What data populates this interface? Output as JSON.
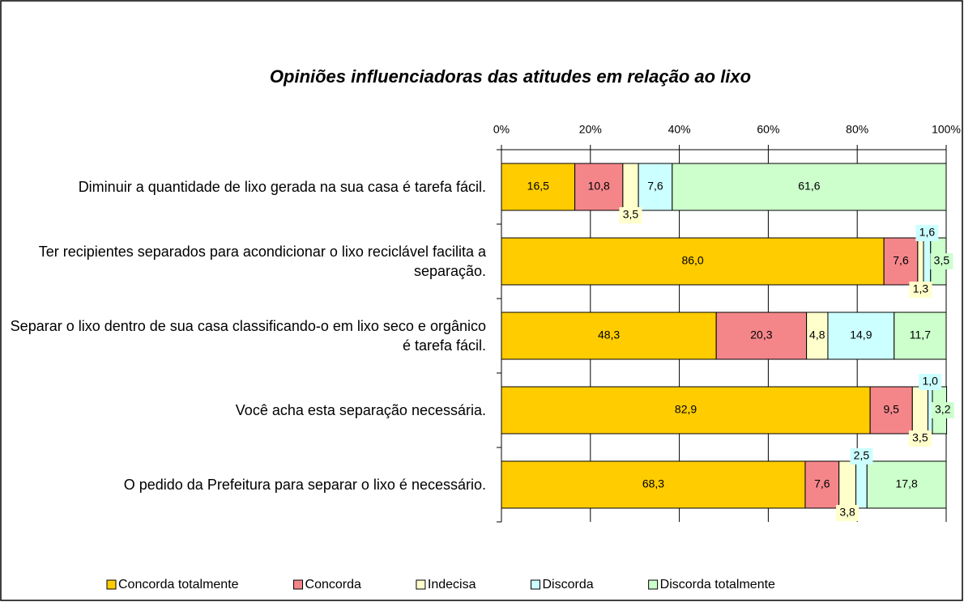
{
  "chart_data": {
    "type": "stacked_bar_horizontal",
    "title": "Opiniões influenciadoras das atitudes em relação ao lixo",
    "categories": [
      "Diminuir a quantidade de lixo gerada na sua casa é tarefa fácil.",
      "Ter recipientes separados para acondicionar o lixo reciclável facilita a separação.",
      "Separar o lixo dentro de sua casa classificando-o em lixo seco e orgânico é tarefa fácil.",
      "Você acha esta separação necessária.",
      "O pedido da Prefeitura para separar o lixo é necessário."
    ],
    "series": [
      {
        "name": "Concorda totalmente",
        "color": "#ffcc00",
        "values": [
          16.5,
          86.0,
          48.3,
          82.9,
          68.3
        ],
        "value_labels": [
          "16,5",
          "86,0",
          "48,3",
          "82,9",
          "68,3"
        ]
      },
      {
        "name": "Concorda",
        "color": "#f4868a",
        "values": [
          10.8,
          7.6,
          20.3,
          9.5,
          7.6
        ],
        "value_labels": [
          "10,8",
          "7,6",
          "20,3",
          "9,5",
          "7,6"
        ]
      },
      {
        "name": "Indecisa",
        "color": "#ffffcc",
        "values": [
          3.5,
          1.3,
          4.8,
          3.5,
          3.8
        ],
        "value_labels": [
          "3,5",
          "1,3",
          "4,8",
          "3,5",
          "3,8"
        ]
      },
      {
        "name": "Discorda",
        "color": "#ccffff",
        "values": [
          7.6,
          1.6,
          14.9,
          1.0,
          2.5
        ],
        "value_labels": [
          "7,6",
          "1,6",
          "14,9",
          "1,0",
          "2,5"
        ]
      },
      {
        "name": "Discorda totalmente",
        "color": "#ccffcc",
        "values": [
          61.6,
          3.5,
          11.7,
          3.2,
          17.8
        ],
        "value_labels": [
          "61,6",
          "3,5",
          "11,7",
          "3,2",
          "17,8"
        ]
      }
    ],
    "xlim": [
      0,
      100
    ],
    "xticks": [
      {
        "value": 0,
        "label": "0%"
      },
      {
        "value": 20,
        "label": "20%"
      },
      {
        "value": 40,
        "label": "40%"
      },
      {
        "value": 60,
        "label": "60%"
      },
      {
        "value": 80,
        "label": "80%"
      },
      {
        "value": 100,
        "label": "100%"
      }
    ],
    "grid": true,
    "legend": "bottom"
  }
}
